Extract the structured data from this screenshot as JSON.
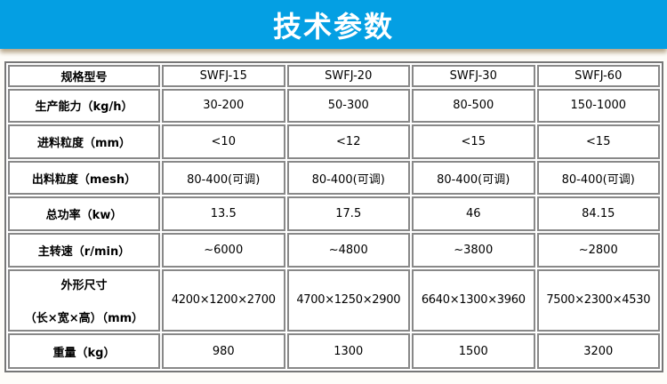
{
  "title": "技术参数",
  "models": [
    "SWFJ-15",
    "SWFJ-20",
    "SWFJ-30",
    "SWFJ-60"
  ],
  "header_label": "规格型号",
  "rows": [
    {
      "label": "生产能力（kg/h）",
      "values": [
        "30-200",
        "50-300",
        "80-500",
        "150-1000"
      ]
    },
    {
      "label": "进料粒度（mm）",
      "values": [
        "<10",
        "<12",
        "<15",
        "<15"
      ]
    },
    {
      "label": "出料粒度（mesh）",
      "values": [
        "80-400(可调)",
        "80-400(可调)",
        "80-400(可调)",
        "80-400(可调)"
      ]
    },
    {
      "label": "总功率（kw）",
      "values": [
        "13.5",
        "17.5",
        "46",
        "84.15"
      ]
    },
    {
      "label": "主转速（r/min）",
      "values": [
        "~6000",
        "~4800",
        "~3800",
        "~2800"
      ]
    },
    {
      "label": "外形尺寸",
      "label2": "（长×宽×高）（mm）",
      "values": [
        "4200×1200×2700",
        "4700×1250×2900",
        "6640×1300×3960",
        "7500×2300×4530"
      ]
    },
    {
      "label": "重量（kg）",
      "values": [
        "980",
        "1300",
        "1500",
        "3200"
      ]
    }
  ],
  "colors": {
    "banner": "#049fe3",
    "banner_text": "#ffffff"
  }
}
